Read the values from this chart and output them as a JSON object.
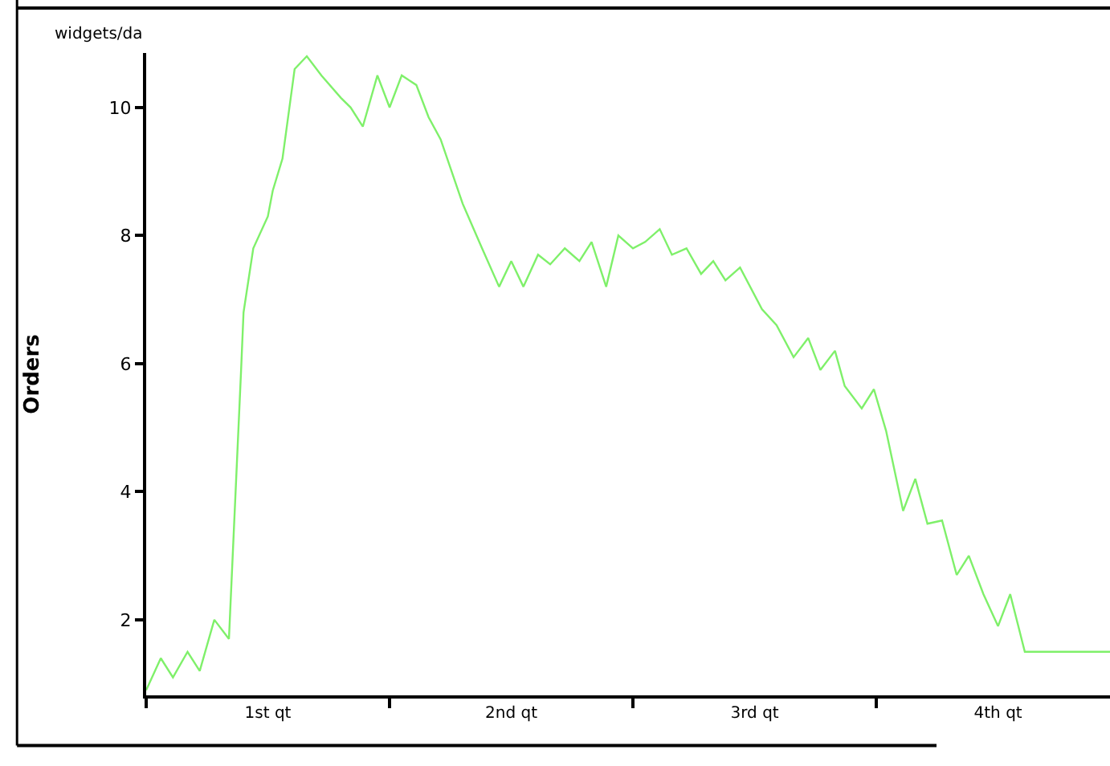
{
  "chart_data": {
    "type": "line",
    "ylabel": "Orders",
    "annotations": [
      "widgets/da"
    ],
    "x": [
      0.0,
      0.06,
      0.11,
      0.17,
      0.22,
      0.28,
      0.34,
      0.39,
      0.4,
      0.44,
      0.5,
      0.52,
      0.56,
      0.61,
      0.66,
      0.72,
      0.8,
      0.84,
      0.89,
      0.95,
      1.0,
      1.05,
      1.11,
      1.16,
      1.21,
      1.3,
      1.38,
      1.45,
      1.5,
      1.55,
      1.61,
      1.66,
      1.72,
      1.78,
      1.83,
      1.89,
      1.94,
      2.0,
      2.05,
      2.11,
      2.16,
      2.22,
      2.28,
      2.33,
      2.38,
      2.44,
      2.53,
      2.59,
      2.66,
      2.72,
      2.77,
      2.83,
      2.87,
      2.94,
      2.99,
      3.04,
      3.11,
      3.16,
      3.21,
      3.27,
      3.33,
      3.38,
      3.44,
      3.5,
      3.55,
      3.61,
      3.96
    ],
    "series": [
      {
        "color": "#7ff06a",
        "values": [
          0.9,
          1.4,
          1.1,
          1.5,
          1.2,
          2.0,
          1.7,
          5.9,
          6.8,
          7.8,
          8.3,
          8.7,
          9.2,
          10.6,
          10.8,
          10.5,
          10.15,
          10.0,
          9.7,
          10.5,
          10.0,
          10.5,
          10.35,
          9.85,
          9.5,
          8.5,
          7.8,
          7.2,
          7.6,
          7.2,
          7.7,
          7.55,
          7.8,
          7.6,
          7.9,
          7.2,
          8.0,
          7.8,
          7.9,
          8.1,
          7.7,
          7.8,
          7.4,
          7.6,
          7.3,
          7.5,
          6.85,
          6.6,
          6.1,
          6.4,
          5.9,
          6.2,
          5.65,
          5.3,
          5.6,
          4.95,
          3.7,
          4.2,
          3.5,
          3.55,
          2.7,
          3.0,
          2.4,
          1.9,
          2.4,
          1.5,
          1.5
        ]
      }
    ],
    "xlim": [
      0,
      3.96
    ],
    "xticks": [
      {
        "value": 0,
        "label": null
      },
      {
        "value": 0.5,
        "label": "1st qt"
      },
      {
        "value": 1,
        "label": null
      },
      {
        "value": 1.5,
        "label": "2nd qt"
      },
      {
        "value": 2,
        "label": null
      },
      {
        "value": 2.5,
        "label": "3rd qt"
      },
      {
        "value": 3,
        "label": null
      },
      {
        "value": 3.5,
        "label": "4th qt"
      }
    ],
    "ylim": [
      0.82,
      10.85
    ],
    "yticks": [
      2,
      4,
      6,
      8,
      10
    ],
    "line_style": "solid"
  }
}
